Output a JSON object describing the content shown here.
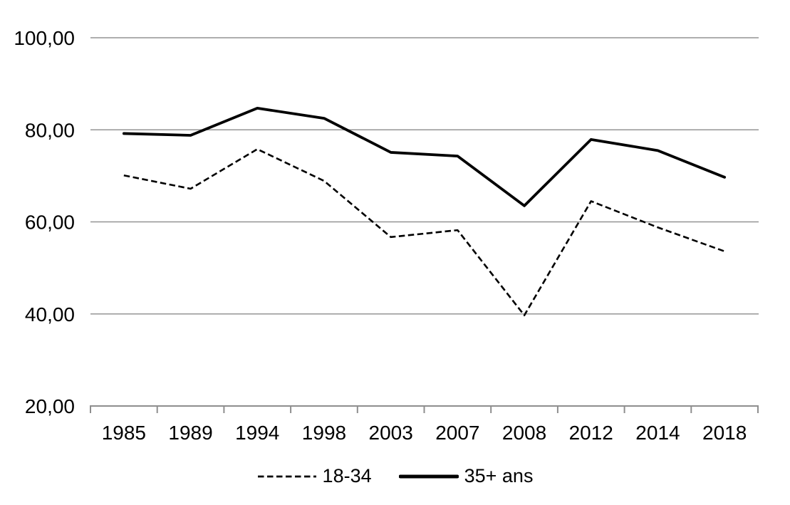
{
  "chart_data": {
    "type": "line",
    "title": "",
    "xlabel": "",
    "ylabel": "",
    "grid": true,
    "legend_position": "bottom",
    "categories": [
      "1985",
      "1989",
      "1994",
      "1998",
      "2003",
      "2007",
      "2008",
      "2012",
      "2014",
      "2018"
    ],
    "series": [
      {
        "name": "18-34",
        "style": "dashed",
        "color": "#000000",
        "values": [
          70.1,
          67.2,
          75.8,
          68.9,
          56.7,
          58.2,
          39.7,
          64.5,
          58.8,
          53.6
        ]
      },
      {
        "name": "35+ ans",
        "style": "solid",
        "color": "#000000",
        "values": [
          79.2,
          78.8,
          84.7,
          82.5,
          75.1,
          74.3,
          63.5,
          77.9,
          75.5,
          69.7
        ]
      }
    ],
    "ylim": [
      20,
      100
    ],
    "yticks": [
      {
        "value": 100,
        "label": "100,00"
      },
      {
        "value": 80,
        "label": "80,00"
      },
      {
        "value": 60,
        "label": "60,00"
      },
      {
        "value": 40,
        "label": "40,00"
      },
      {
        "value": 20,
        "label": "20,00"
      }
    ],
    "colors": {
      "gridline": "#949494",
      "axis": "#8e8e8e",
      "text": "#000000",
      "background": "#ffffff"
    }
  },
  "legend": {
    "items": [
      {
        "label": "18-34",
        "sample": "dashed-line"
      },
      {
        "label": "35+ ans",
        "sample": "solid-line"
      }
    ]
  }
}
